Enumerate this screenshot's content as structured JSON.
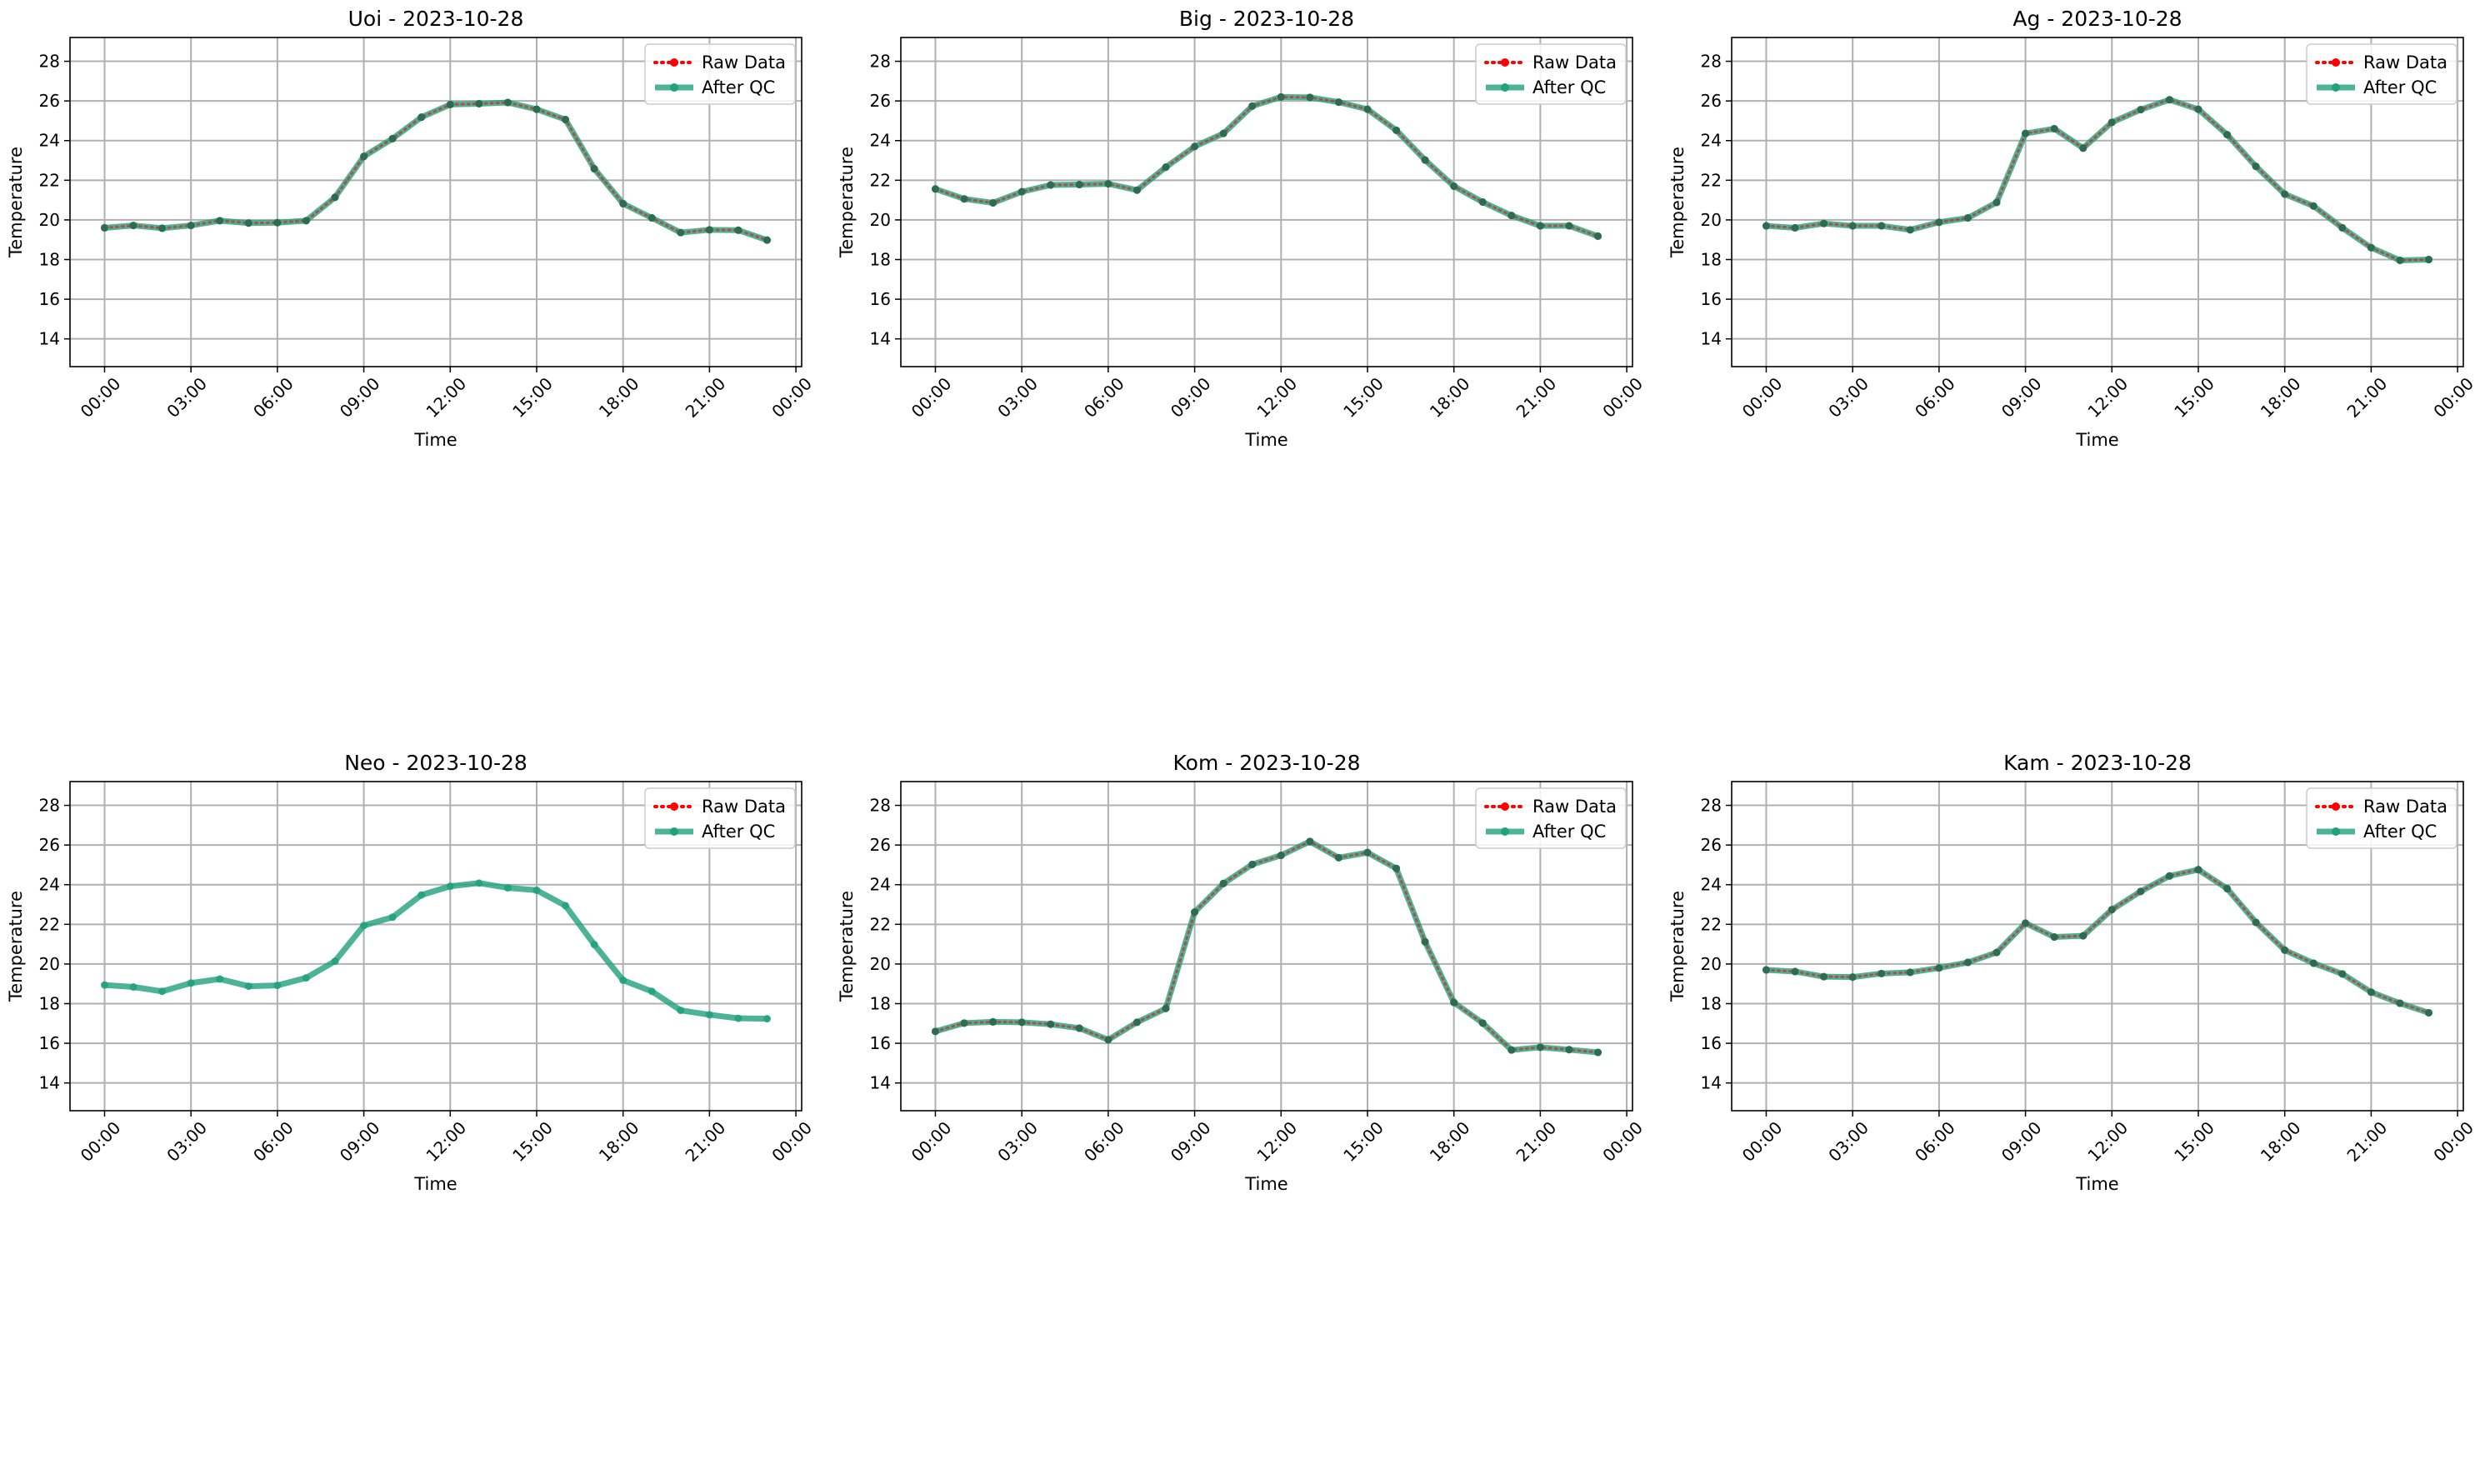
{
  "figure": {
    "xlabel": "Time",
    "ylabel": "Temperature"
  },
  "legend": {
    "raw_label": "Raw Data",
    "qc_label": "After QC"
  },
  "colors": {
    "raw": "#ff0000",
    "qc": "#20a07c",
    "point": "#2e6b52",
    "grid": "#b0b0b0"
  },
  "chart_data": [
    {
      "type": "line",
      "title": "Uoi - 2023-10-28",
      "xlabel": "Time",
      "ylabel": "Temperature",
      "x_ticks": [
        "00:00",
        "03:00",
        "06:00",
        "09:00",
        "12:00",
        "15:00",
        "18:00",
        "21:00",
        "00:00"
      ],
      "xlim_hours": [
        -1.2,
        24.2
      ],
      "ylim": [
        12.6,
        29.2
      ],
      "y_ticks": [
        14,
        16,
        18,
        20,
        22,
        24,
        26,
        28
      ],
      "grid": true,
      "legend_position": "top-right",
      "raw_visible": true,
      "series": [
        {
          "name": "Raw Data",
          "values": [
            19.6,
            19.72,
            19.58,
            19.72,
            19.96,
            19.84,
            19.86,
            19.96,
            21.14,
            23.2,
            24.1,
            25.18,
            25.82,
            25.86,
            25.92,
            25.58,
            25.06,
            22.58,
            20.82,
            20.1,
            19.36,
            19.5,
            19.48,
            18.98
          ]
        },
        {
          "name": "After QC",
          "values": [
            19.6,
            19.72,
            19.58,
            19.72,
            19.96,
            19.84,
            19.86,
            19.96,
            21.14,
            23.2,
            24.1,
            25.18,
            25.82,
            25.86,
            25.92,
            25.58,
            25.06,
            22.58,
            20.82,
            20.1,
            19.36,
            19.5,
            19.48,
            18.98
          ]
        }
      ]
    },
    {
      "type": "line",
      "title": "Big - 2023-10-28",
      "xlabel": "Time",
      "ylabel": "Temperature",
      "x_ticks": [
        "00:00",
        "03:00",
        "06:00",
        "09:00",
        "12:00",
        "15:00",
        "18:00",
        "21:00",
        "00:00"
      ],
      "xlim_hours": [
        -1.2,
        24.2
      ],
      "ylim": [
        12.6,
        29.2
      ],
      "y_ticks": [
        14,
        16,
        18,
        20,
        22,
        24,
        26,
        28
      ],
      "grid": true,
      "legend_position": "top-right",
      "raw_visible": true,
      "series": [
        {
          "name": "Raw Data",
          "values": [
            21.56,
            21.06,
            20.86,
            21.42,
            21.76,
            21.78,
            21.82,
            21.5,
            22.66,
            23.7,
            24.36,
            25.74,
            26.2,
            26.18,
            25.94,
            25.58,
            24.52,
            23.02,
            21.7,
            20.9,
            20.22,
            19.7,
            19.7,
            19.18
          ]
        },
        {
          "name": "After QC",
          "values": [
            21.56,
            21.06,
            20.86,
            21.42,
            21.76,
            21.78,
            21.82,
            21.5,
            22.66,
            23.7,
            24.36,
            25.74,
            26.2,
            26.18,
            25.94,
            25.58,
            24.52,
            23.02,
            21.7,
            20.9,
            20.22,
            19.7,
            19.7,
            19.18
          ]
        }
      ]
    },
    {
      "type": "line",
      "title": "Ag - 2023-10-28",
      "xlabel": "Time",
      "ylabel": "Temperature",
      "x_ticks": [
        "00:00",
        "03:00",
        "06:00",
        "09:00",
        "12:00",
        "15:00",
        "18:00",
        "21:00",
        "00:00"
      ],
      "xlim_hours": [
        -1.2,
        24.2
      ],
      "ylim": [
        12.6,
        29.2
      ],
      "y_ticks": [
        14,
        16,
        18,
        20,
        22,
        24,
        26,
        28
      ],
      "grid": true,
      "legend_position": "top-right",
      "raw_visible": true,
      "series": [
        {
          "name": "Raw Data",
          "values": [
            19.7,
            19.6,
            19.82,
            19.7,
            19.7,
            19.5,
            19.88,
            20.1,
            20.88,
            24.36,
            24.6,
            23.62,
            24.92,
            25.56,
            26.06,
            25.58,
            24.3,
            22.7,
            21.3,
            20.7,
            19.6,
            18.6,
            17.96,
            18.0
          ]
        },
        {
          "name": "After QC",
          "values": [
            19.7,
            19.6,
            19.82,
            19.7,
            19.7,
            19.5,
            19.88,
            20.1,
            20.88,
            24.36,
            24.6,
            23.62,
            24.92,
            25.56,
            26.06,
            25.58,
            24.3,
            22.7,
            21.3,
            20.7,
            19.6,
            18.6,
            17.96,
            18.0
          ]
        }
      ]
    },
    {
      "type": "line",
      "title": "Neo - 2023-10-28",
      "xlabel": "Time",
      "ylabel": "Temperature",
      "x_ticks": [
        "00:00",
        "03:00",
        "06:00",
        "09:00",
        "12:00",
        "15:00",
        "18:00",
        "21:00",
        "00:00"
      ],
      "xlim_hours": [
        -1.2,
        24.2
      ],
      "ylim": [
        12.6,
        29.2
      ],
      "y_ticks": [
        14,
        16,
        18,
        20,
        22,
        24,
        26,
        28
      ],
      "grid": true,
      "legend_position": "top-right",
      "raw_visible": false,
      "series": [
        {
          "name": "Raw Data",
          "values": []
        },
        {
          "name": "After QC",
          "values": [
            18.94,
            18.84,
            18.62,
            19.04,
            19.24,
            18.88,
            18.92,
            19.3,
            20.14,
            21.94,
            22.36,
            23.48,
            23.92,
            24.08,
            23.84,
            23.72,
            22.94,
            20.98,
            19.18,
            18.62,
            17.66,
            17.44,
            17.26,
            17.24
          ]
        }
      ]
    },
    {
      "type": "line",
      "title": "Kom - 2023-10-28",
      "xlabel": "Time",
      "ylabel": "Temperature",
      "x_ticks": [
        "00:00",
        "03:00",
        "06:00",
        "09:00",
        "12:00",
        "15:00",
        "18:00",
        "21:00",
        "00:00"
      ],
      "xlim_hours": [
        -1.2,
        24.2
      ],
      "ylim": [
        12.6,
        29.2
      ],
      "y_ticks": [
        14,
        16,
        18,
        20,
        22,
        24,
        26,
        28
      ],
      "grid": true,
      "legend_position": "top-right",
      "raw_visible": true,
      "series": [
        {
          "name": "Raw Data",
          "values": [
            16.6,
            17.02,
            17.08,
            17.06,
            16.96,
            16.76,
            16.18,
            17.06,
            17.76,
            22.62,
            24.06,
            25.02,
            25.48,
            26.18,
            25.36,
            25.62,
            24.82,
            21.12,
            18.06,
            17.02,
            15.66,
            15.8,
            15.68,
            15.54
          ]
        },
        {
          "name": "After QC",
          "values": [
            16.6,
            17.02,
            17.08,
            17.06,
            16.96,
            16.76,
            16.18,
            17.06,
            17.76,
            22.62,
            24.06,
            25.02,
            25.48,
            26.18,
            25.36,
            25.62,
            24.82,
            21.12,
            18.06,
            17.02,
            15.66,
            15.8,
            15.68,
            15.54
          ]
        }
      ]
    },
    {
      "type": "line",
      "title": "Kam - 2023-10-28",
      "xlabel": "Time",
      "ylabel": "Temperature",
      "x_ticks": [
        "00:00",
        "03:00",
        "06:00",
        "09:00",
        "12:00",
        "15:00",
        "18:00",
        "21:00",
        "00:00"
      ],
      "xlim_hours": [
        -1.2,
        24.2
      ],
      "ylim": [
        12.6,
        29.2
      ],
      "y_ticks": [
        14,
        16,
        18,
        20,
        22,
        24,
        26,
        28
      ],
      "grid": true,
      "legend_position": "top-right",
      "raw_visible": true,
      "series": [
        {
          "name": "Raw Data",
          "values": [
            19.7,
            19.62,
            19.36,
            19.34,
            19.52,
            19.58,
            19.8,
            20.08,
            20.58,
            22.06,
            21.36,
            21.42,
            22.74,
            23.66,
            24.44,
            24.76,
            23.8,
            22.1,
            20.7,
            20.04,
            19.5,
            18.58,
            18.02,
            17.54
          ]
        },
        {
          "name": "After QC",
          "values": [
            19.7,
            19.62,
            19.36,
            19.34,
            19.52,
            19.58,
            19.8,
            20.08,
            20.58,
            22.06,
            21.36,
            21.42,
            22.74,
            23.66,
            24.44,
            24.76,
            23.8,
            22.1,
            20.7,
            20.04,
            19.5,
            18.58,
            18.02,
            17.54
          ]
        }
      ]
    }
  ]
}
